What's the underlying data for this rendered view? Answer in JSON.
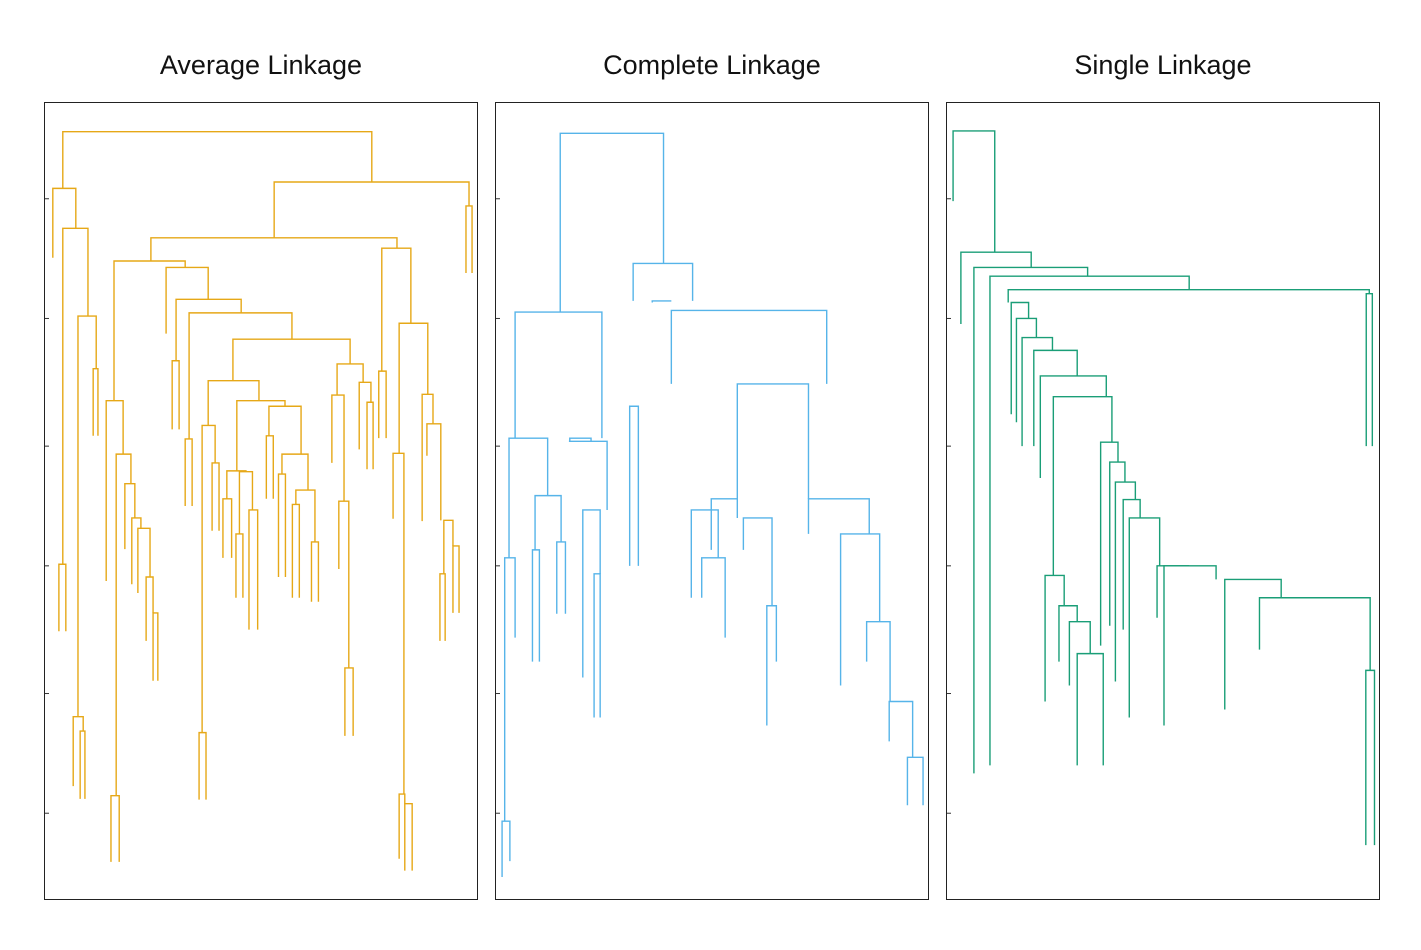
{
  "chart_data": [
    {
      "type": "dendrogram",
      "title": "Average Linkage",
      "color": "#E6A817",
      "x_units": "leaf axis 0-100",
      "y_units": "merge height 0-100",
      "grid": false,
      "merges": [
        [
          4.1,
          75.3,
          96.4,
          89.3,
          90.1
        ],
        [
          1.8,
          7.1,
          89.3,
          80.6,
          84.3
        ],
        [
          4.1,
          9.9,
          84.3,
          42.2,
          73.3
        ],
        [
          3.2,
          4.8,
          42.2,
          33.8,
          33.8
        ],
        [
          7.6,
          11.8,
          73.3,
          23.1,
          66.7
        ],
        [
          11.1,
          12.2,
          66.7,
          58.3,
          58.3
        ],
        [
          6.5,
          8.8,
          23.1,
          14.4,
          21.3
        ],
        [
          8.1,
          9.2,
          21.3,
          12.8,
          12.8
        ],
        [
          52.8,
          97.7,
          90.1,
          83.1,
          87.1
        ],
        [
          97.0,
          98.4,
          87.1,
          78.7,
          78.7
        ],
        [
          24.4,
          81.1,
          83.1,
          80.2,
          81.8
        ],
        [
          77.6,
          84.3,
          81.8,
          66.4,
          72.4
        ],
        [
          76.9,
          78.6,
          66.4,
          58.0,
          58.0
        ],
        [
          81.6,
          88.2,
          72.4,
          56.1,
          63.5
        ],
        [
          80.2,
          82.7,
          56.1,
          47.9,
          13.4
        ],
        [
          81.6,
          82.9,
          13.4,
          5.3,
          12.2
        ],
        [
          82.9,
          84.6,
          12.2,
          3.8,
          3.8
        ],
        [
          86.9,
          89.4,
          63.5,
          47.6,
          59.8
        ],
        [
          88.0,
          91.2,
          59.8,
          55.8,
          47.7
        ],
        [
          91.9,
          94.0,
          47.7,
          41.0,
          44.5
        ],
        [
          91.0,
          92.2,
          41.0,
          32.6,
          32.6
        ],
        [
          94.0,
          95.4,
          44.5,
          36.1,
          36.1
        ],
        [
          15.9,
          32.3,
          80.2,
          62.7,
          79.4
        ],
        [
          14.1,
          18.0,
          62.7,
          40.1,
          56.0
        ],
        [
          16.4,
          19.8,
          56.0,
          13.2,
          52.3
        ],
        [
          15.2,
          17.1,
          13.2,
          4.9,
          4.9
        ],
        [
          18.4,
          20.7,
          52.3,
          44.1,
          48.0
        ],
        [
          20.0,
          22.1,
          48.0,
          39.7,
          46.7
        ],
        [
          21.4,
          24.2,
          46.7,
          38.6,
          40.6
        ],
        [
          23.3,
          24.9,
          40.6,
          32.6,
          36.1
        ],
        [
          24.9,
          26.0,
          36.1,
          27.6,
          27.6
        ],
        [
          27.9,
          37.6,
          79.4,
          71.1,
          75.4
        ],
        [
          30.2,
          45.2,
          75.4,
          67.7,
          73.7
        ],
        [
          29.3,
          30.9,
          67.7,
          59.1,
          59.1
        ],
        [
          33.2,
          56.9,
          73.7,
          57.9,
          70.4
        ],
        [
          32.3,
          33.9,
          57.9,
          49.5,
          49.5
        ],
        [
          43.3,
          70.3,
          70.4,
          65.2,
          67.3
        ],
        [
          67.3,
          73.3,
          67.3,
          63.4,
          65.0
        ],
        [
          66.1,
          68.9,
          63.4,
          54.9,
          50.1
        ],
        [
          67.7,
          70.0,
          50.1,
          41.6,
          29.2
        ],
        [
          69.1,
          71.0,
          29.2,
          20.7,
          20.7
        ],
        [
          72.4,
          75.1,
          65.0,
          56.6,
          62.5
        ],
        [
          74.2,
          75.6,
          62.5,
          54.1,
          54.1
        ],
        [
          37.6,
          49.3,
          65.2,
          59.6,
          62.7
        ],
        [
          36.2,
          39.2,
          59.6,
          21.1,
          54.9
        ],
        [
          35.5,
          37.1,
          21.1,
          12.7,
          12.7
        ],
        [
          38.5,
          40.1,
          54.9,
          46.4,
          46.4
        ],
        [
          44.2,
          55.3,
          62.7,
          53.9,
          62.0
        ],
        [
          41.9,
          46.3,
          53.9,
          50.4,
          53.8
        ],
        [
          41.0,
          43.0,
          50.4,
          43.0,
          43.0
        ],
        [
          44.8,
          47.8,
          53.8,
          46.0,
          49.0
        ],
        [
          44.0,
          45.6,
          46.0,
          38.0,
          38.0
        ],
        [
          47.0,
          49.0,
          49.0,
          34.0,
          34.0
        ],
        [
          51.6,
          59.0,
          62.0,
          58.3,
          56.0
        ],
        [
          51.0,
          52.6,
          58.3,
          50.4,
          50.4
        ],
        [
          54.6,
          60.6,
          56.0,
          53.5,
          51.5
        ],
        [
          53.8,
          55.4,
          53.5,
          40.6,
          40.6
        ],
        [
          57.8,
          62.2,
          51.5,
          49.7,
          45.0
        ],
        [
          57.0,
          58.6,
          49.7,
          38.0,
          38.0
        ],
        [
          61.4,
          63.0,
          45.0,
          37.5,
          37.5
        ]
      ]
    },
    {
      "type": "dendrogram",
      "title": "Complete Linkage",
      "color": "#56B4E9",
      "x_units": "leaf axis 0-100",
      "y_units": "merge height 0-100",
      "grid": false,
      "merges": [
        [
          14.8,
          38.6,
          96.2,
          73.8,
          79.9
        ],
        [
          4.4,
          24.4,
          73.8,
          58.0,
          58.0
        ],
        [
          3.0,
          11.9,
          58.0,
          43.0,
          50.8
        ],
        [
          2.0,
          4.4,
          43.0,
          10.0,
          33.0
        ],
        [
          1.4,
          3.2,
          10.0,
          3.0,
          5.0
        ],
        [
          9.0,
          15.0,
          50.8,
          44.0,
          45.0
        ],
        [
          8.4,
          10.0,
          44.0,
          30.0,
          30.0
        ],
        [
          14.0,
          16.0,
          45.0,
          36.0,
          36.0
        ],
        [
          17.0,
          21.9,
          58.0,
          57.6,
          57.6
        ],
        [
          16.8,
          25.6,
          57.6,
          57.6,
          49.0
        ],
        [
          20.0,
          24.0,
          49.0,
          28.0,
          41.0
        ],
        [
          22.6,
          24.0,
          41.0,
          23.0,
          23.0
        ],
        [
          31.6,
          45.3,
          79.9,
          75.2,
          75.2
        ],
        [
          30.8,
          32.8,
          62.0,
          42.0,
          42.0
        ],
        [
          36.0,
          40.4,
          75.2,
          75.0,
          75.2
        ],
        [
          40.4,
          76.2,
          74.0,
          64.8,
          64.8
        ],
        [
          45.0,
          51.2,
          49.0,
          38.0,
          43.0
        ],
        [
          47.4,
          52.8,
          43.0,
          38.0,
          33.0
        ],
        [
          55.6,
          72.0,
          64.8,
          50.4,
          50.4
        ],
        [
          49.6,
          55.6,
          50.4,
          44.0,
          48.0
        ],
        [
          57.0,
          63.6,
          48.0,
          44.0,
          37.0
        ],
        [
          62.4,
          64.6,
          37.0,
          22.0,
          30.0
        ],
        [
          72.0,
          86.0,
          50.4,
          46.0,
          46.0
        ],
        [
          79.4,
          88.4,
          46.0,
          27.0,
          35.0
        ],
        [
          85.4,
          90.8,
          35.0,
          30.0,
          25.0
        ],
        [
          90.6,
          96.0,
          25.0,
          20.0,
          18.0
        ],
        [
          94.8,
          98.4,
          18.0,
          12.0,
          12.0
        ]
      ]
    },
    {
      "type": "dendrogram",
      "title": "Single Linkage",
      "color": "#1A9E77",
      "x_units": "leaf axis 0-100",
      "y_units": "merge height 0-100",
      "grid": false,
      "merges": [
        [
          1.4,
          11.0,
          96.5,
          87.7,
          81.3
        ],
        [
          3.2,
          19.4,
          81.3,
          72.3,
          79.4
        ],
        [
          6.2,
          32.4,
          79.4,
          16.0,
          78.3
        ],
        [
          9.9,
          55.8,
          78.3,
          17.0,
          76.6
        ],
        [
          14.1,
          97.3,
          76.6,
          75.0,
          76.1
        ],
        [
          96.6,
          98.0,
          76.1,
          57.0,
          57.0
        ],
        [
          14.8,
          18.8,
          75.0,
          61.0,
          73.0
        ],
        [
          16.0,
          20.6,
          73.0,
          60.0,
          70.6
        ],
        [
          17.3,
          24.3,
          70.6,
          57.0,
          69.0
        ],
        [
          20.0,
          30.0,
          69.0,
          57.0,
          65.8
        ],
        [
          21.5,
          36.7,
          65.8,
          53.0,
          63.2
        ],
        [
          24.5,
          38.0,
          63.2,
          40.8,
          57.5
        ],
        [
          22.6,
          27.0,
          40.8,
          25.0,
          37.0
        ],
        [
          25.8,
          30.0,
          37.0,
          30.0,
          35.0
        ],
        [
          28.2,
          33.0,
          35.0,
          27.0,
          31.0
        ],
        [
          30.0,
          36.0,
          31.0,
          17.0,
          17.0
        ],
        [
          35.4,
          39.4,
          57.5,
          32.0,
          55.0
        ],
        [
          37.5,
          41.0,
          55.0,
          34.5,
          52.5
        ],
        [
          38.8,
          43.4,
          52.5,
          27.5,
          50.3
        ],
        [
          40.6,
          44.5,
          50.3,
          34.0,
          48.0
        ],
        [
          42.0,
          49.0,
          48.0,
          23.0,
          42.0
        ],
        [
          48.4,
          55.8,
          42.0,
          35.5,
          42.0
        ],
        [
          50.0,
          62.0,
          42.0,
          22.0,
          40.3
        ],
        [
          64.0,
          77.0,
          40.3,
          24.0,
          38.0
        ],
        [
          72.0,
          97.5,
          38.0,
          31.5,
          28.9
        ],
        [
          96.5,
          98.5,
          28.9,
          7.0,
          7.0
        ]
      ]
    }
  ],
  "panels": [
    {
      "title": "Average Linkage"
    },
    {
      "title": "Complete Linkage"
    },
    {
      "title": "Single Linkage"
    }
  ]
}
